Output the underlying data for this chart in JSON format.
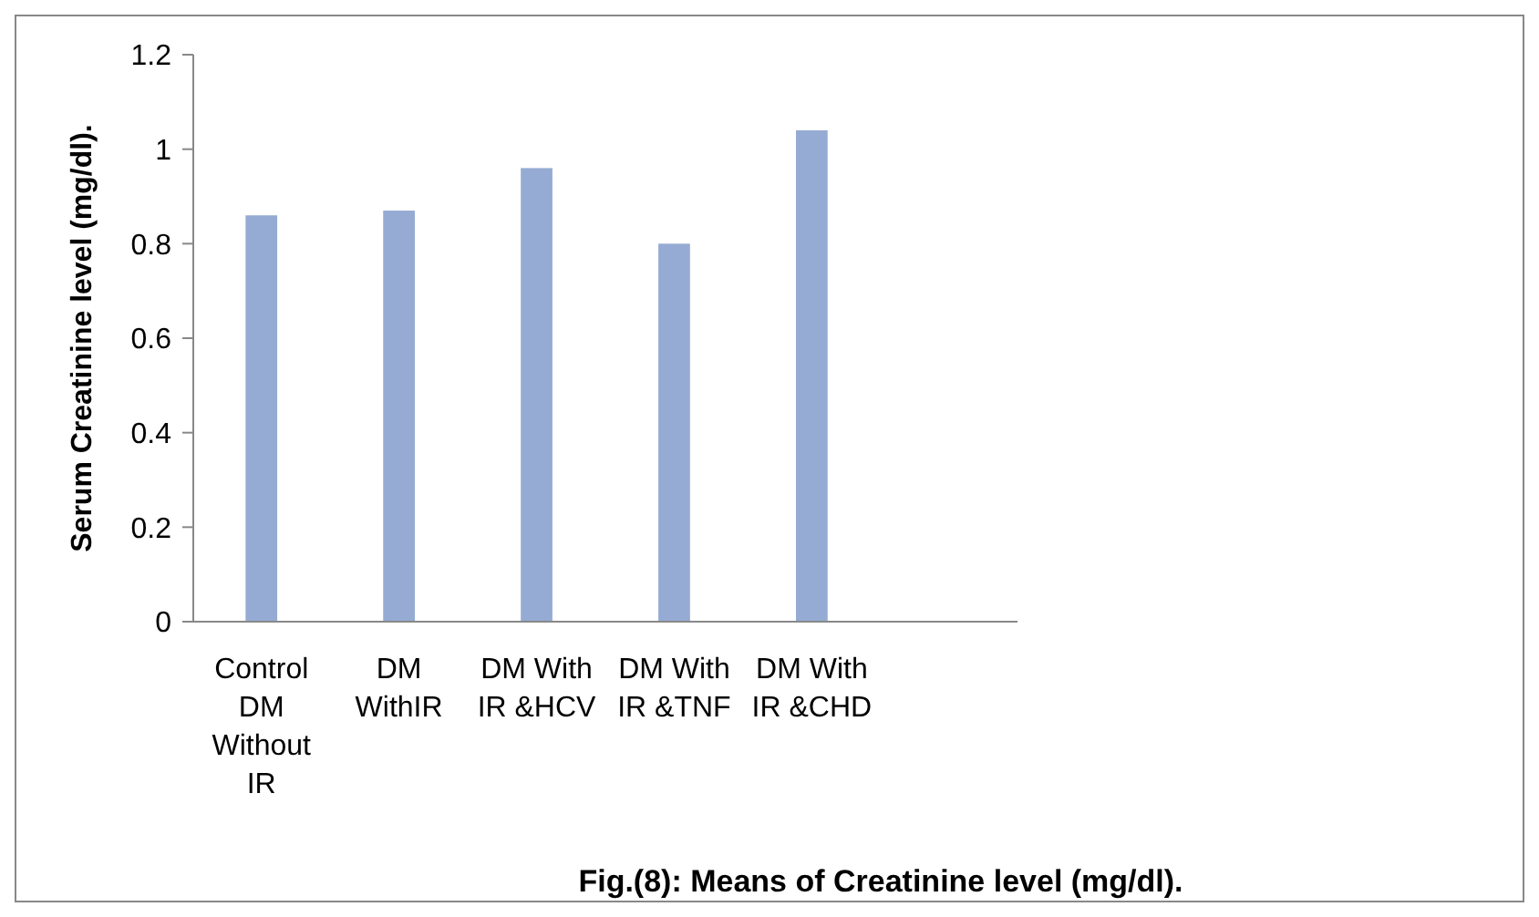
{
  "chart_data": {
    "type": "bar",
    "title": "Fig.(8): Means of Creatinine level (mg/dl).",
    "ylabel": "Serum Creatinine level (mg/dl).",
    "categories": [
      "Control DM Without IR",
      "DM WithIR",
      "DM With IR &HCV",
      "DM With IR &TNF",
      "DM With IR &CHD",
      null
    ],
    "values": [
      0.86,
      0.87,
      0.96,
      0.8,
      1.04,
      null
    ],
    "color": "#95abd3",
    "ylim": [
      0,
      1.2
    ],
    "yticks": [
      0,
      {
        "value": 0.2,
        "label": "0.2"
      },
      {
        "value": 0.4,
        "label": "0.4"
      },
      {
        "value": 0.6,
        "label": "0.6"
      },
      {
        "value": 0.8,
        "label": "0.8"
      },
      1,
      {
        "value": 1.2,
        "label": "1.2"
      }
    ],
    "grid": false
  }
}
